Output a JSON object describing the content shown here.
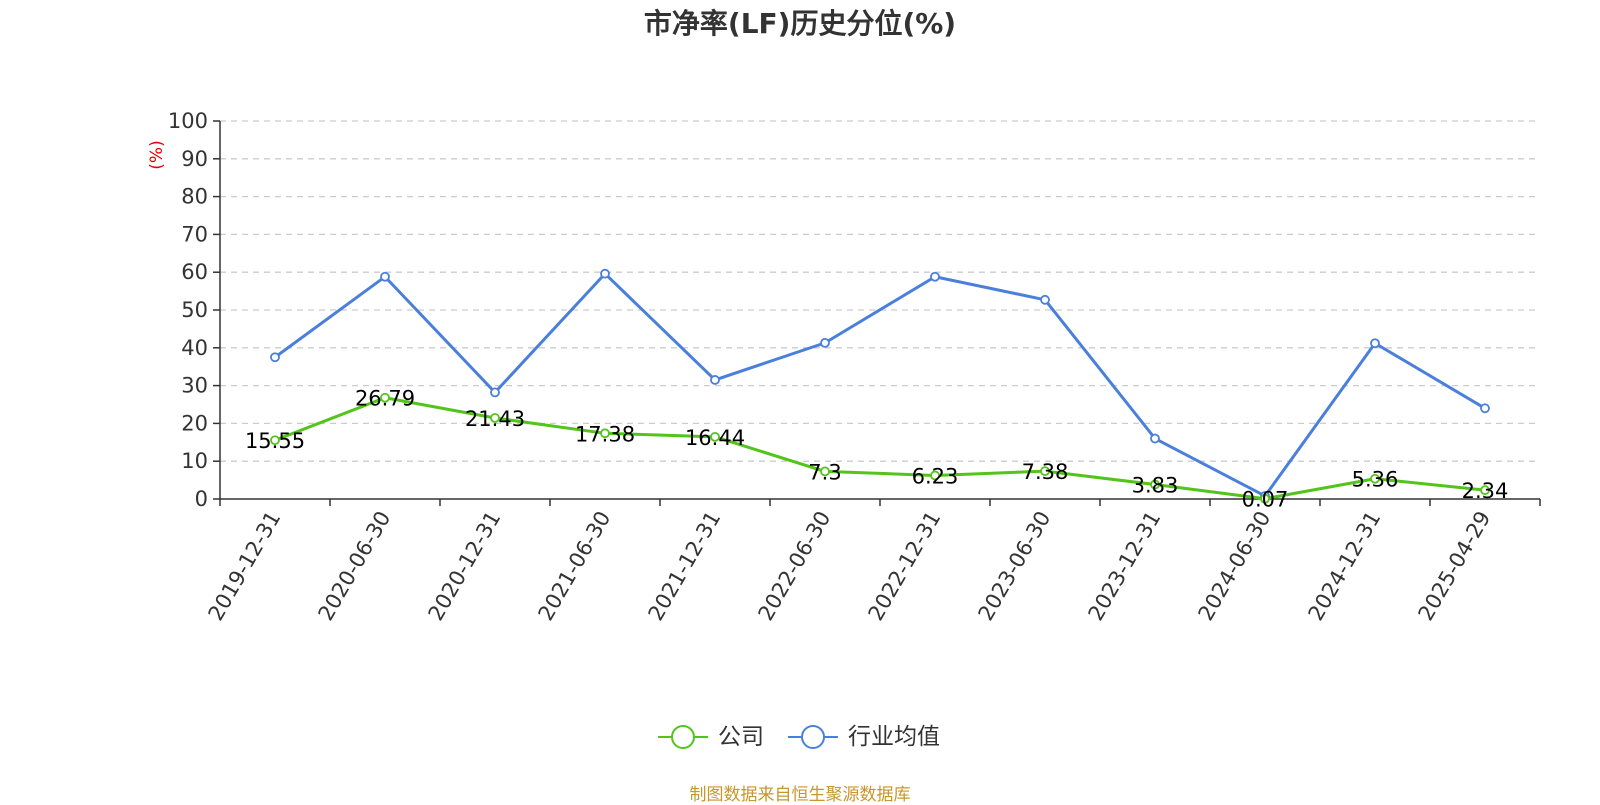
{
  "source_note": "制图数据来自恒生聚源数据库",
  "colors": {
    "company": "#52c41a",
    "industry": "#4a7fdc",
    "axis": "#333333",
    "grid": "#cccccc",
    "unit": "#e00000",
    "source": "#c8962a"
  },
  "chart_data": {
    "type": "line",
    "title": "市净率(LF)历史分位(%)",
    "xlabel": "",
    "ylabel": "(%)",
    "ylim": [
      0,
      100
    ],
    "yticks": [
      0,
      10,
      20,
      30,
      40,
      50,
      60,
      70,
      80,
      90,
      100
    ],
    "grid": true,
    "legend_position": "bottom-center",
    "categories": [
      "2019-12-31",
      "2020-06-30",
      "2020-12-31",
      "2021-06-30",
      "2021-12-31",
      "2022-06-30",
      "2022-12-31",
      "2023-06-30",
      "2023-12-31",
      "2024-06-30",
      "2024-12-31",
      "2025-04-29"
    ],
    "series": [
      {
        "name": "公司",
        "color": "#52c41a",
        "values": [
          15.55,
          26.79,
          21.43,
          17.38,
          16.44,
          7.3,
          6.23,
          7.38,
          3.83,
          0.07,
          5.36,
          2.34
        ],
        "labels": [
          "15.55",
          "26.79",
          "21.43",
          "17.38",
          "16.44",
          "7.3",
          "6.23",
          "7.38",
          "3.83",
          "0.07",
          "5.36",
          "2.34"
        ]
      },
      {
        "name": "行业均值",
        "color": "#4a7fdc",
        "values": [
          37.5,
          58.8,
          28.2,
          59.6,
          31.5,
          41.3,
          58.8,
          52.7,
          16.0,
          0.8,
          41.2,
          24.0
        ]
      }
    ]
  }
}
